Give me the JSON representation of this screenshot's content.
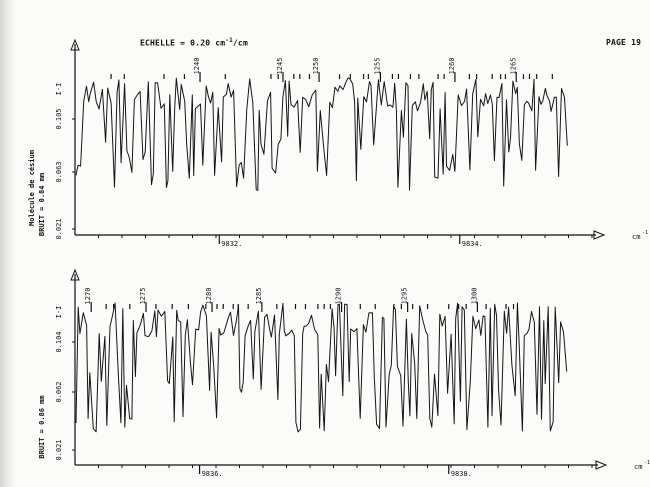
{
  "header": {
    "scale_label": "ECHELLE = 0.20 cm",
    "scale_unit_suffix": "/cm",
    "page": "PAGE 19"
  },
  "chart_data": [
    {
      "type": "line",
      "ylabel_molecule": "Molécule de césium",
      "noise_label": "BRUIT = 0.84 mm",
      "intensity_label": "I-I",
      "y_ticks": [
        "0.021",
        "0.063",
        "0.105"
      ],
      "x_ticks": [
        {
          "value": 9832,
          "label": "9832."
        },
        {
          "value": 9834,
          "label": "9834."
        }
      ],
      "x_unit": "cm",
      "xlim": [
        9830.8,
        9835.1
      ],
      "line_numbers": [
        {
          "label": "1240",
          "x": 9831.84
        },
        {
          "label": "1245",
          "x": 9832.53
        },
        {
          "label": "1250",
          "x": 9832.83
        },
        {
          "label": "1255",
          "x": 9833.34
        },
        {
          "label": "1260",
          "x": 9833.96
        },
        {
          "label": "1265",
          "x": 9834.47
        }
      ],
      "line_ticks": [
        9831.1,
        9831.21,
        9831.54,
        9831.71,
        9832.05,
        9832.43,
        9832.49,
        9832.62,
        9832.67,
        9832.75,
        9833.0,
        9833.09,
        9833.2,
        9833.24,
        9833.44,
        9833.49,
        9833.59,
        9833.66,
        9833.82,
        9833.87,
        9834.08,
        9834.14,
        9834.27,
        9834.34,
        9834.38,
        9834.53,
        9834.58,
        9834.64,
        9834.77
      ]
    },
    {
      "type": "line",
      "noise_label": "BRUIT = 0.86 mm",
      "intensity_label": "I-I",
      "y_ticks": [
        "0.021",
        "0.062",
        "0.104"
      ],
      "x_ticks": [
        {
          "value": 9836,
          "label": "9836."
        },
        {
          "value": 9838,
          "label": "9838."
        }
      ],
      "x_unit": "cm",
      "xlim": [
        9835.0,
        9839.15
      ],
      "line_numbers": [
        {
          "label": "1270",
          "x": 9835.13
        },
        {
          "label": "1275",
          "x": 9835.57
        },
        {
          "label": "1280",
          "x": 9836.1
        },
        {
          "label": "1285",
          "x": 9836.5
        },
        {
          "label": "1290",
          "x": 9837.14
        },
        {
          "label": "1295",
          "x": 9837.67
        },
        {
          "label": "1300",
          "x": 9838.23
        }
      ],
      "line_ticks": [
        9835.25,
        9835.31,
        9835.44,
        9835.65,
        9835.78,
        9835.91,
        9836.05,
        9836.14,
        9836.19,
        9836.27,
        9836.31,
        9836.39,
        9836.62,
        9836.77,
        9836.85,
        9836.95,
        9837.0,
        9837.05,
        9837.29,
        9837.41,
        9837.56,
        9837.62,
        9837.71,
        9837.83,
        9838.0,
        9838.08,
        9838.14,
        9838.3,
        9838.46,
        9838.52
      ]
    }
  ]
}
